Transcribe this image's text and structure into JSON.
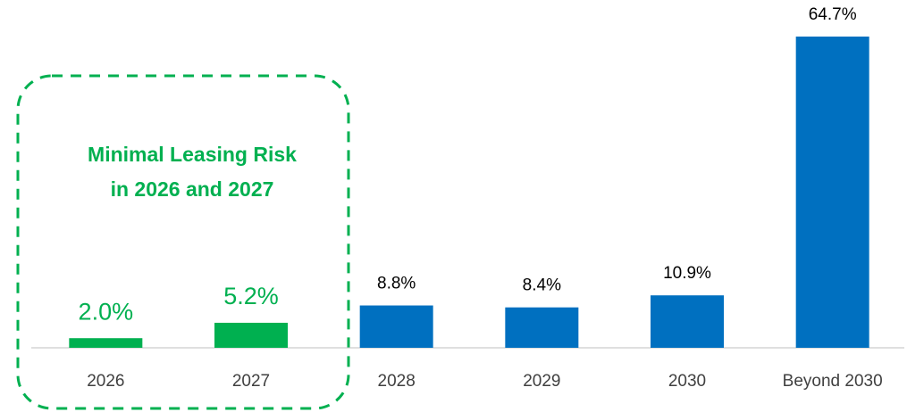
{
  "chart_data": {
    "type": "bar",
    "annotation": [
      "Minimal Leasing Risk",
      "in 2026 and 2027"
    ],
    "categories": [
      "2026",
      "2027",
      "2028",
      "2029",
      "2030",
      "Beyond 2030"
    ],
    "values": [
      2.0,
      5.2,
      8.8,
      8.4,
      10.9,
      64.7
    ],
    "value_labels": [
      "2.0%",
      "5.2%",
      "8.8%",
      "8.4%",
      "10.9%",
      "64.7%"
    ],
    "colors": [
      "#00b050",
      "#00b050",
      "#0070c0",
      "#0070c0",
      "#0070c0",
      "#0070c0"
    ],
    "value_label_colors": [
      "#00b050",
      "#00b050",
      "#000000",
      "#000000",
      "#000000",
      "#000000"
    ]
  }
}
